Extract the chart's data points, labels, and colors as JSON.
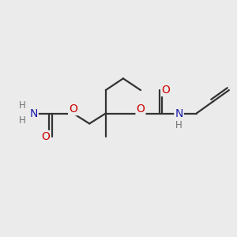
{
  "bg_color": "#ebebeb",
  "atom_color_O": "#cc0000",
  "atom_color_N": "#1a1aaa",
  "atom_color_H": "#707070",
  "bond_color": "#333333",
  "bond_width": 1.6,
  "figsize": [
    3.0,
    3.0
  ],
  "dpi": 100,
  "xlim": [
    0,
    10
  ],
  "ylim": [
    0,
    10
  ]
}
